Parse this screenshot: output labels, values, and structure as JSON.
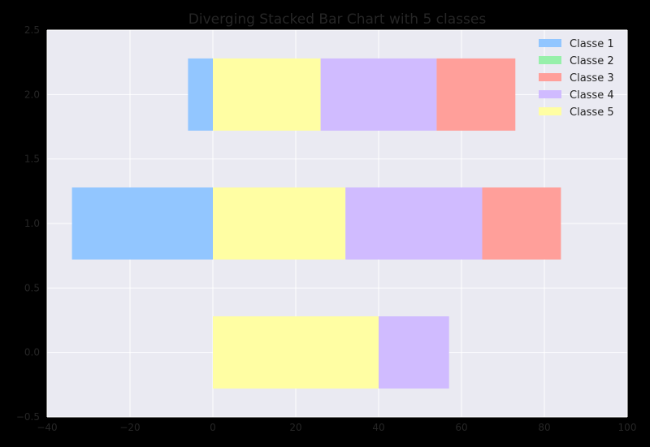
{
  "chart_data": {
    "type": "bar",
    "orientation": "horizontal",
    "stacking": "diverging",
    "title": "Diverging Stacked Bar Chart with 5 classes",
    "xlabel": "",
    "ylabel": "",
    "xlim": [
      -40,
      100
    ],
    "ylim": [
      -0.5,
      2.5
    ],
    "xticks": [
      -40,
      -20,
      0,
      20,
      40,
      60,
      80,
      100
    ],
    "xtick_labels": [
      "−40",
      "−20",
      "0",
      "20",
      "40",
      "60",
      "80",
      "100"
    ],
    "yticks": [
      -0.5,
      0.0,
      0.5,
      1.0,
      1.5,
      2.0,
      2.5
    ],
    "ytick_labels": [
      "−0.5",
      "0.0",
      "0.5",
      "1.0",
      "1.5",
      "2.0",
      "2.5"
    ],
    "grid": true,
    "legend_position": "top-right",
    "bar_height": 0.56,
    "y": [
      0,
      1,
      2
    ],
    "series": [
      {
        "name": "Classe 1",
        "color": "#92c6ff",
        "values": [
          0,
          -34,
          -6
        ]
      },
      {
        "name": "Classe 2",
        "color": "#97f0aa",
        "values": [
          0,
          0,
          0
        ]
      },
      {
        "name": "Classe 3",
        "color": "#ff9f9a",
        "values": [
          0,
          19,
          19
        ]
      },
      {
        "name": "Classe 4",
        "color": "#d0bbff",
        "values": [
          17,
          33,
          28
        ]
      },
      {
        "name": "Classe 5",
        "color": "#fffea3",
        "values": [
          40,
          32,
          26
        ]
      }
    ],
    "bars": [
      {
        "y": 0,
        "segments": [
          {
            "series": "Classe 5",
            "start": 0,
            "end": 40
          },
          {
            "series": "Classe 4",
            "start": 40,
            "end": 57
          }
        ]
      },
      {
        "y": 1,
        "segments": [
          {
            "series": "Classe 1",
            "start": -34,
            "end": 0
          },
          {
            "series": "Classe 5",
            "start": 0,
            "end": 32
          },
          {
            "series": "Classe 4",
            "start": 32,
            "end": 65
          },
          {
            "series": "Classe 3",
            "start": 65,
            "end": 84
          }
        ]
      },
      {
        "y": 2,
        "segments": [
          {
            "series": "Classe 1",
            "start": -6,
            "end": 0
          },
          {
            "series": "Classe 5",
            "start": 0,
            "end": 26
          },
          {
            "series": "Classe 4",
            "start": 26,
            "end": 54
          },
          {
            "series": "Classe 3",
            "start": 54,
            "end": 73
          }
        ]
      }
    ]
  },
  "colors": {
    "figure_background": "#000000",
    "plot_background": "#eaeaf2",
    "grid": "#ffffff",
    "text": "#262626"
  }
}
